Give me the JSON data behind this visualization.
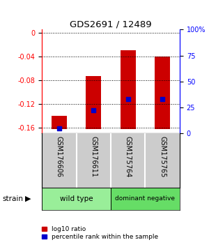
{
  "title": "GDS2691 / 12489",
  "samples": [
    "GSM176606",
    "GSM176611",
    "GSM175764",
    "GSM175765"
  ],
  "bar_bottoms": [
    -0.163,
    -0.163,
    -0.163,
    -0.163
  ],
  "bar_tops": [
    -0.14,
    -0.073,
    -0.03,
    -0.04
  ],
  "percentile_values": [
    5,
    22,
    33,
    33
  ],
  "strain_groups": [
    {
      "label": "wild type",
      "samples": [
        0,
        1
      ],
      "color": "#99ee99"
    },
    {
      "label": "dominant negative",
      "samples": [
        2,
        3
      ],
      "color": "#66dd66"
    }
  ],
  "ylim_left": [
    -0.17,
    0.005
  ],
  "ylim_right": [
    0,
    100
  ],
  "yticks_left": [
    0,
    -0.04,
    -0.08,
    -0.12,
    -0.16
  ],
  "yticks_right": [
    0,
    25,
    50,
    75,
    100
  ],
  "bar_color_red": "#cc0000",
  "bar_color_blue": "#0000cc",
  "bg_color": "#ffffff",
  "label_area_color": "#cccccc",
  "legend_red": "log10 ratio",
  "legend_blue": "percentile rank within the sample"
}
